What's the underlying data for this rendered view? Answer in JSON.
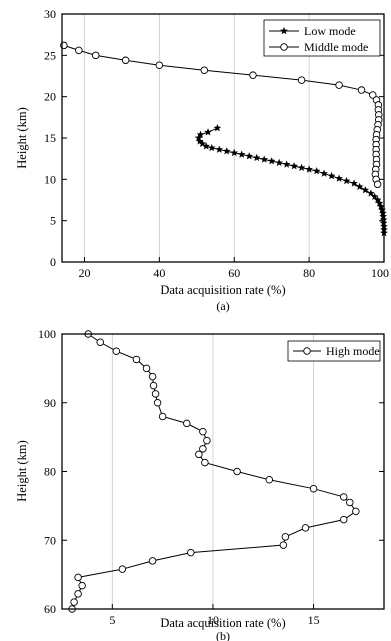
{
  "chart_data": [
    {
      "type": "line",
      "caption": "(a)",
      "xlabel": "Data acquisition rate (%)",
      "ylabel": "Height (km)",
      "xlim": [
        14,
        100
      ],
      "ylim": [
        0,
        30
      ],
      "xticks": [
        20,
        40,
        60,
        80,
        100
      ],
      "yticks": [
        0,
        5,
        10,
        15,
        20,
        25,
        30
      ],
      "grid": "vertical",
      "legend_position": "top-right",
      "series": [
        {
          "name": "Low mode",
          "marker": "filled-star",
          "points": [
            [
              55.5,
              16.2
            ],
            [
              53.0,
              15.7
            ],
            [
              51.0,
              15.4
            ],
            [
              50.5,
              15.0
            ],
            [
              50.8,
              14.6
            ],
            [
              51.5,
              14.3
            ],
            [
              52.5,
              14.0
            ],
            [
              54.0,
              13.8
            ],
            [
              56.0,
              13.6
            ],
            [
              58.0,
              13.4
            ],
            [
              60.0,
              13.2
            ],
            [
              62.0,
              13.0
            ],
            [
              64.0,
              12.8
            ],
            [
              66.0,
              12.6
            ],
            [
              68.0,
              12.4
            ],
            [
              70.0,
              12.2
            ],
            [
              72.0,
              12.0
            ],
            [
              74.0,
              11.8
            ],
            [
              76.0,
              11.6
            ],
            [
              78.0,
              11.4
            ],
            [
              80.0,
              11.2
            ],
            [
              82.0,
              11.0
            ],
            [
              84.0,
              10.7
            ],
            [
              86.0,
              10.4
            ],
            [
              88.0,
              10.1
            ],
            [
              90.0,
              9.8
            ],
            [
              92.0,
              9.5
            ],
            [
              93.5,
              9.1
            ],
            [
              95.0,
              8.7
            ],
            [
              96.5,
              8.3
            ],
            [
              97.5,
              7.9
            ],
            [
              98.3,
              7.5
            ],
            [
              98.8,
              7.1
            ],
            [
              99.2,
              6.7
            ],
            [
              99.5,
              6.3
            ],
            [
              99.7,
              5.9
            ],
            [
              99.8,
              5.5
            ],
            [
              99.9,
              5.1
            ],
            [
              99.9,
              4.7
            ],
            [
              100.0,
              4.3
            ],
            [
              100.0,
              3.9
            ],
            [
              100.0,
              3.5
            ]
          ]
        },
        {
          "name": "Middle mode",
          "marker": "open-circle",
          "points": [
            [
              14.5,
              26.2
            ],
            [
              18.5,
              25.6
            ],
            [
              23.0,
              25.0
            ],
            [
              31.0,
              24.4
            ],
            [
              40.0,
              23.8
            ],
            [
              52.0,
              23.2
            ],
            [
              65.0,
              22.6
            ],
            [
              78.0,
              22.0
            ],
            [
              88.0,
              21.4
            ],
            [
              94.0,
              20.8
            ],
            [
              97.0,
              20.2
            ],
            [
              98.0,
              19.6
            ],
            [
              98.5,
              19.0
            ],
            [
              98.5,
              18.4
            ],
            [
              98.6,
              17.8
            ],
            [
              98.6,
              17.2
            ],
            [
              98.4,
              16.6
            ],
            [
              98.2,
              16.0
            ],
            [
              98.0,
              15.4
            ],
            [
              97.9,
              14.8
            ],
            [
              97.9,
              14.2
            ],
            [
              97.9,
              13.6
            ],
            [
              97.9,
              13.0
            ],
            [
              98.0,
              12.4
            ],
            [
              98.0,
              11.8
            ],
            [
              97.8,
              11.2
            ],
            [
              97.7,
              10.6
            ],
            [
              97.9,
              10.0
            ],
            [
              98.3,
              9.4
            ]
          ]
        }
      ]
    },
    {
      "type": "line",
      "caption": "(b)",
      "xlabel": "Data acquisition rate (%)",
      "ylabel": "Height (km)",
      "xlim": [
        2.5,
        18.5
      ],
      "ylim": [
        60,
        100
      ],
      "xticks": [
        5,
        10,
        15
      ],
      "yticks": [
        60,
        70,
        80,
        90,
        100
      ],
      "grid": "vertical",
      "legend_position": "top-right",
      "series": [
        {
          "name": "High mode",
          "marker": "open-circle",
          "points": [
            [
              3.8,
              100.0
            ],
            [
              4.4,
              98.8
            ],
            [
              5.2,
              97.5
            ],
            [
              6.2,
              96.3
            ],
            [
              6.7,
              95.0
            ],
            [
              7.0,
              93.8
            ],
            [
              7.05,
              92.5
            ],
            [
              7.15,
              91.3
            ],
            [
              7.25,
              90.0
            ],
            [
              7.5,
              88.0
            ],
            [
              8.7,
              87.0
            ],
            [
              9.5,
              85.8
            ],
            [
              9.7,
              84.5
            ],
            [
              9.5,
              83.3
            ],
            [
              9.3,
              82.5
            ],
            [
              9.6,
              81.3
            ],
            [
              11.2,
              80.0
            ],
            [
              12.8,
              78.8
            ],
            [
              15.0,
              77.5
            ],
            [
              16.5,
              76.3
            ],
            [
              16.8,
              75.5
            ],
            [
              17.1,
              74.2
            ],
            [
              16.5,
              73.0
            ],
            [
              14.6,
              71.8
            ],
            [
              13.6,
              70.5
            ],
            [
              13.5,
              69.3
            ],
            [
              8.9,
              68.2
            ],
            [
              7.0,
              67.0
            ],
            [
              5.5,
              65.8
            ],
            [
              3.3,
              64.6
            ],
            [
              3.5,
              63.4
            ],
            [
              3.3,
              62.2
            ],
            [
              3.1,
              61.0
            ],
            [
              3.0,
              60.0
            ]
          ]
        }
      ]
    }
  ]
}
